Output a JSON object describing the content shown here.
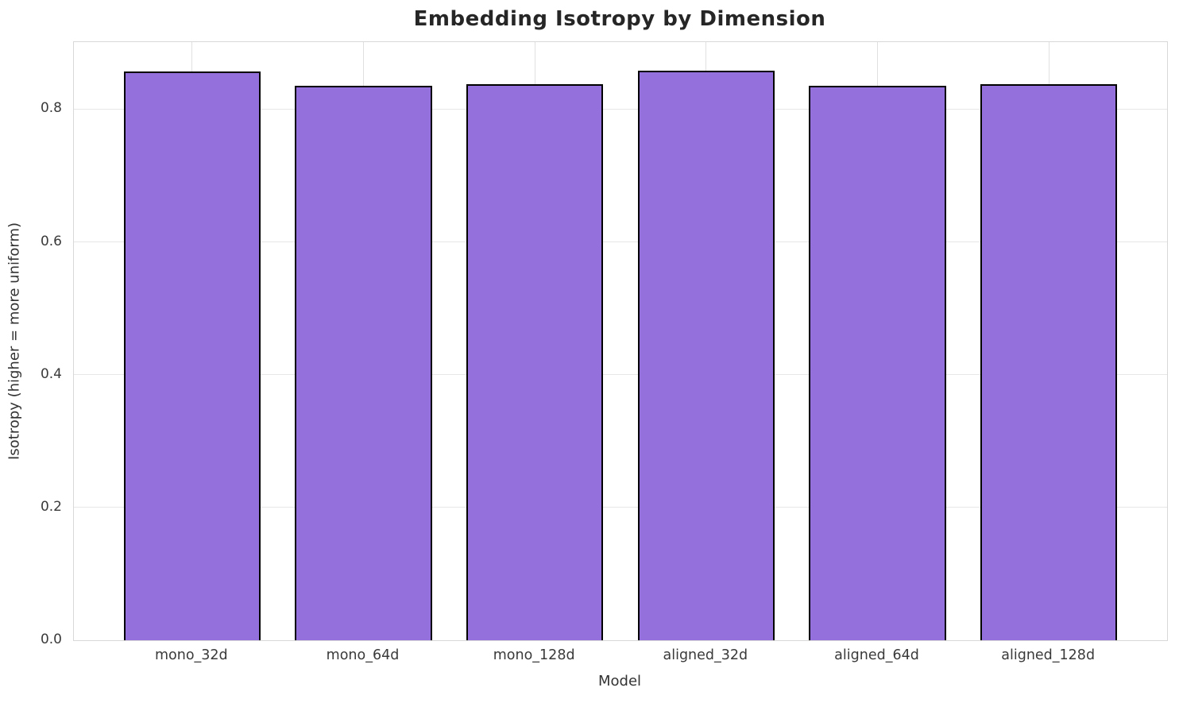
{
  "chart_data": {
    "type": "bar",
    "title": "Embedding Isotropy by Dimension",
    "xlabel": "Model",
    "ylabel": "Isotropy (higher = more uniform)",
    "categories": [
      "mono_32d",
      "mono_64d",
      "mono_128d",
      "aligned_32d",
      "aligned_64d",
      "aligned_128d"
    ],
    "values": [
      0.857,
      0.835,
      0.838,
      0.858,
      0.835,
      0.838
    ],
    "yticks": [
      0.0,
      0.2,
      0.4,
      0.6,
      0.8
    ],
    "ylim": [
      0,
      0.901
    ],
    "grid": "on",
    "legend": "none",
    "colors": {
      "bar_fill": "#9370DB",
      "bar_edge": "#000000",
      "grid_line": "#e7e7e7",
      "spine": "#d8d8d8",
      "title_text": "#262626",
      "tick_text": "#3a3a3a"
    }
  }
}
